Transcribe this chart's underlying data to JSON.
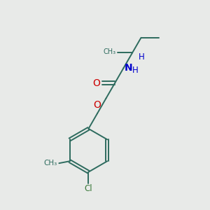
{
  "background_color": "#e8eae8",
  "bond_color": "#2d6b5e",
  "atom_colors": {
    "O": "#cc0000",
    "N": "#0000cc",
    "Cl": "#3a7a3a",
    "C": "#2d6b5e",
    "H": "#0000cc"
  },
  "figsize": [
    3.0,
    3.0
  ],
  "dpi": 100
}
